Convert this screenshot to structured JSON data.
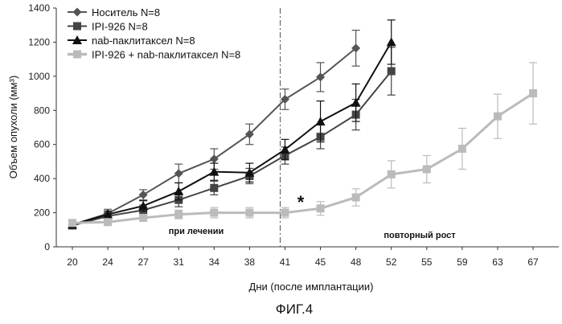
{
  "chart_data": {
    "type": "line",
    "xlabel": "Дни (после имплантации)",
    "ylabel": "Объем опухоли (мм³)",
    "categories": [
      "20",
      "24",
      "27",
      "31",
      "34",
      "38",
      "41",
      "45",
      "48",
      "52",
      "55",
      "59",
      "63",
      "67"
    ],
    "ylim": [
      0,
      1400
    ],
    "yticks": [
      "0",
      "200",
      "400",
      "600",
      "800",
      "1000",
      "1200",
      "1400"
    ],
    "legend_position": "top-left",
    "grid": false,
    "series": [
      {
        "name": "Носитель N=8",
        "color": "#555555",
        "marker": "diamond",
        "values": [
          130,
          195,
          305,
          430,
          515,
          660,
          865,
          995,
          1165,
          null,
          null,
          null,
          null,
          null
        ],
        "errors": [
          15,
          25,
          30,
          55,
          60,
          60,
          60,
          85,
          105,
          null,
          null,
          null,
          null,
          null
        ]
      },
      {
        "name": "IPI-926 N=8",
        "color": "#444444",
        "marker": "square",
        "values": [
          125,
          180,
          215,
          275,
          345,
          415,
          535,
          645,
          775,
          1030,
          null,
          null,
          null,
          null
        ],
        "errors": [
          12,
          20,
          30,
          40,
          40,
          45,
          50,
          70,
          90,
          140,
          null,
          null,
          null,
          null
        ]
      },
      {
        "name": "nab-паклитаксел N=8",
        "color": "#111111",
        "marker": "triangle",
        "values": [
          130,
          190,
          240,
          325,
          440,
          435,
          570,
          735,
          845,
          1200,
          null,
          null,
          null,
          null
        ],
        "errors": [
          12,
          20,
          30,
          50,
          50,
          55,
          60,
          120,
          110,
          130,
          null,
          null,
          null,
          null
        ]
      },
      {
        "name": "IPI-926 + nab-паклитаксел N=8",
        "color": "#bbbbbb",
        "marker": "square",
        "values": [
          140,
          145,
          170,
          190,
          200,
          200,
          200,
          225,
          290,
          425,
          455,
          575,
          765,
          900
        ],
        "errors": [
          15,
          15,
          20,
          25,
          30,
          30,
          30,
          40,
          50,
          80,
          80,
          120,
          130,
          180
        ]
      }
    ],
    "divider_at": "41",
    "annotations": [
      {
        "text": "при лечении",
        "near": "27-31"
      },
      {
        "text": "повторный рост",
        "near": "52"
      },
      {
        "text": "*",
        "near": "41-45"
      }
    ]
  },
  "figure_label": "ФИГ.4"
}
